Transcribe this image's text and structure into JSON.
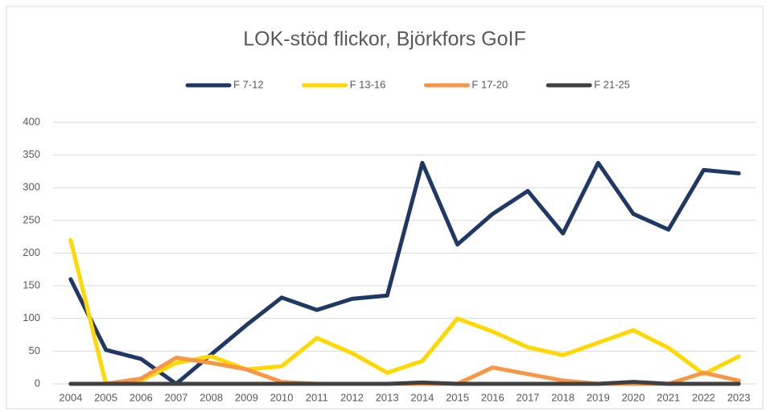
{
  "chart_data": {
    "type": "line",
    "title": "LOK-stöd flickor, Björkfors GoIF",
    "categories": [
      "2004",
      "2005",
      "2006",
      "2007",
      "2008",
      "2009",
      "2010",
      "2011",
      "2012",
      "2013",
      "2014",
      "2015",
      "2016",
      "2017",
      "2018",
      "2019",
      "2020",
      "2021",
      "2022",
      "2023"
    ],
    "series": [
      {
        "name": "F 7-12",
        "color": "#1f3864",
        "values": [
          160,
          52,
          38,
          0,
          45,
          90,
          132,
          113,
          130,
          135,
          338,
          213,
          260,
          295,
          230,
          338,
          260,
          236,
          327,
          322
        ]
      },
      {
        "name": "F 13-16",
        "color": "#ffd800",
        "values": [
          220,
          0,
          5,
          32,
          42,
          22,
          27,
          70,
          47,
          17,
          35,
          100,
          80,
          56,
          44,
          63,
          82,
          55,
          15,
          42
        ]
      },
      {
        "name": "F 17-20",
        "color": "#f79646",
        "values": [
          0,
          0,
          8,
          40,
          32,
          22,
          3,
          0,
          0,
          0,
          0,
          0,
          25,
          15,
          5,
          0,
          0,
          0,
          17,
          5
        ]
      },
      {
        "name": "F 21-25",
        "color": "#404040",
        "values": [
          0,
          0,
          0,
          0,
          0,
          0,
          0,
          0,
          0,
          0,
          2,
          0,
          0,
          0,
          0,
          0,
          3,
          0,
          0,
          0
        ]
      }
    ],
    "ylim": [
      0,
      400
    ],
    "yticks": [
      0,
      50,
      100,
      150,
      200,
      250,
      300,
      350,
      400
    ],
    "grid": true,
    "legend": "top"
  }
}
